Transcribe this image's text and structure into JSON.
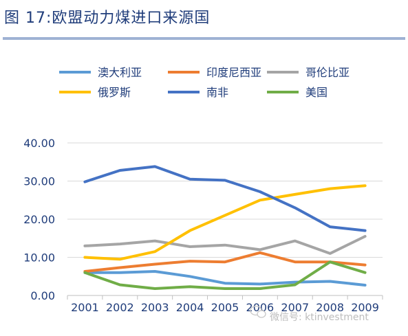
{
  "title": "图 17:欧盟动力煤进口来源国",
  "watermark": "微信号: ktinvestment",
  "chart_data": {
    "type": "line",
    "title": "图 17:欧盟动力煤进口来源国",
    "xlabel": "",
    "ylabel": "",
    "x": [
      "2001",
      "2002",
      "2003",
      "2004",
      "2005",
      "2006",
      "2007",
      "2008",
      "2009"
    ],
    "yticks": [
      "0.00",
      "10.00",
      "20.00",
      "30.00",
      "40.00"
    ],
    "ylim": [
      0,
      40
    ],
    "grid": true,
    "legend_position": "top",
    "series": [
      {
        "name": "澳大利亚",
        "color": "#5b9bd5",
        "values": [
          6.0,
          6.0,
          6.3,
          5.0,
          3.2,
          3.0,
          3.5,
          3.7,
          2.7
        ]
      },
      {
        "name": "印度尼西亚",
        "color": "#ed7d31",
        "values": [
          6.3,
          7.3,
          8.2,
          9.0,
          8.8,
          11.2,
          8.8,
          8.8,
          8.0
        ]
      },
      {
        "name": "哥伦比亚",
        "color": "#a5a5a5",
        "values": [
          13.0,
          13.5,
          14.3,
          12.8,
          13.2,
          12.0,
          14.3,
          11.0,
          15.5
        ]
      },
      {
        "name": "俄罗斯",
        "color": "#ffc000",
        "values": [
          10.0,
          9.5,
          11.5,
          17.0,
          21.0,
          25.0,
          26.5,
          28.0,
          28.8
        ]
      },
      {
        "name": "南非",
        "color": "#4472c4",
        "values": [
          29.8,
          32.8,
          33.8,
          30.5,
          30.2,
          27.2,
          23.0,
          18.0,
          17.0
        ]
      },
      {
        "name": "美国",
        "color": "#70ad47",
        "values": [
          6.0,
          2.8,
          1.8,
          2.3,
          1.8,
          1.8,
          2.8,
          8.8,
          6.0
        ]
      }
    ]
  }
}
